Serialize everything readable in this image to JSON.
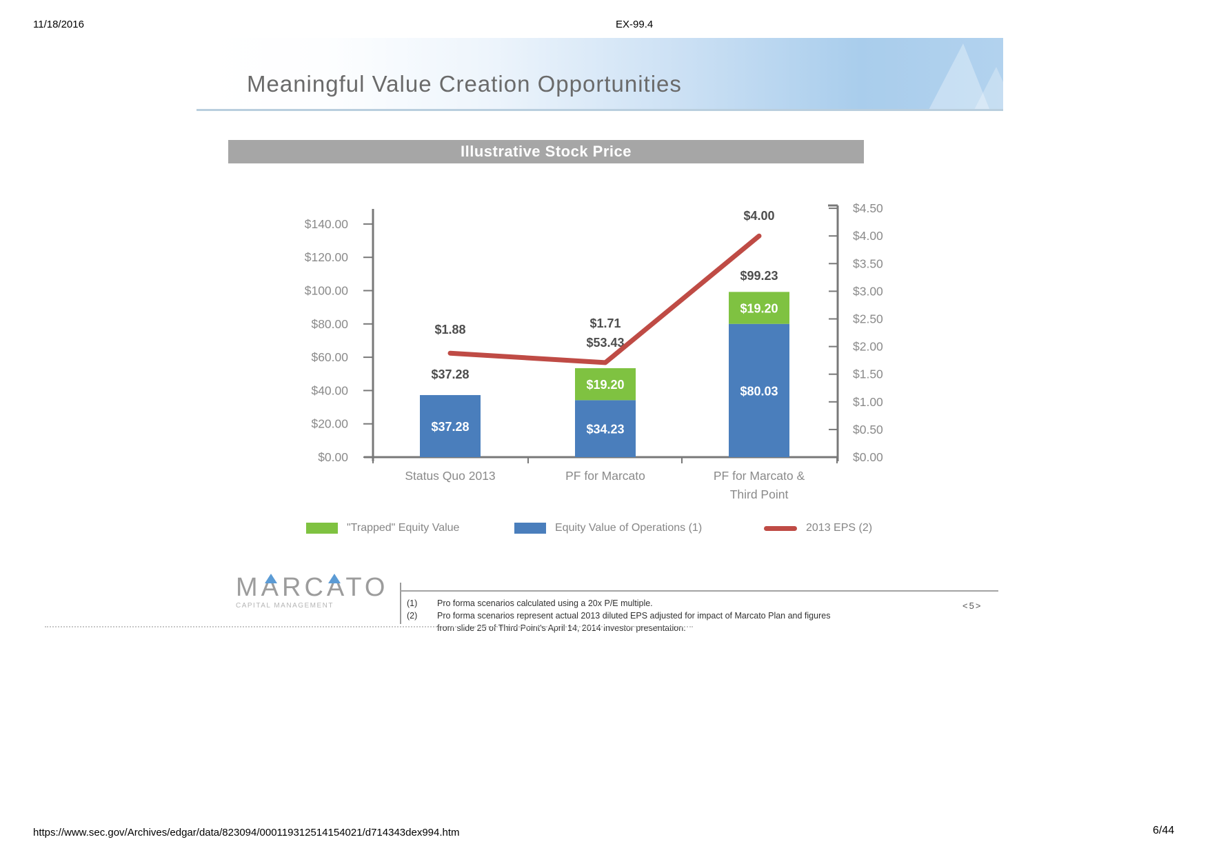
{
  "doc": {
    "date": "11/18/2016",
    "exhibit": "EX-99.4",
    "url": "https://www.sec.gov/Archives/edgar/data/823094/000119312514154021/d714343dex994.htm",
    "page_indicator": "6/44"
  },
  "slide": {
    "title": "Meaningful Value Creation Opportunities",
    "page_marker": "<5>",
    "logo": {
      "name": "MARCATO",
      "subtitle": "CAPITAL MANAGEMENT"
    },
    "footnotes": [
      {
        "num": "(1)",
        "text": "Pro forma scenarios calculated using a 20x P/E multiple."
      },
      {
        "num": "(2)",
        "text": "Pro forma scenarios represent actual 2013 diluted EPS adjusted for impact of Marcato Plan and figures from slide 25 of Third Point's April 14, 2014 investor presentation."
      }
    ]
  },
  "colors": {
    "bar_blue": "#4A7EBC",
    "bar_green": "#7FC241",
    "line_red": "#BF4B45",
    "banner_gray": "#A6A6A6",
    "header_blue": "#A9CDEC",
    "axis_gray": "#787878",
    "label_dark_gray": "#4d4d4d"
  },
  "chart_data": {
    "type": "bar",
    "subtype": "stacked-bar-with-line",
    "title": "Illustrative Stock Price",
    "categories": [
      "Status Quo 2013",
      "PF for Marcato",
      "PF for Marcato &\nThird Point"
    ],
    "series": [
      {
        "name": "\"Trapped\" Equity Value",
        "type": "bar",
        "color": "#7FC241",
        "values": [
          0,
          19.2,
          19.2
        ],
        "labels": [
          "",
          "$19.20",
          "$19.20"
        ]
      },
      {
        "name": "Equity Value of Operations (1)",
        "type": "bar",
        "color": "#4A7EBC",
        "values": [
          37.28,
          34.23,
          80.03
        ],
        "labels": [
          "$37.28",
          "$34.23",
          "$80.03"
        ]
      },
      {
        "name": "2013 EPS (2)",
        "type": "line",
        "axis": "right",
        "color": "#BF4B45",
        "values": [
          1.88,
          1.71,
          4.0
        ],
        "labels": [
          "$1.88",
          "$1.71",
          "$4.00"
        ]
      }
    ],
    "totals": {
      "values": [
        37.28,
        53.43,
        99.23
      ],
      "labels": [
        "$37.28",
        "$53.43",
        "$99.23"
      ]
    },
    "left_axis": {
      "min": 0,
      "max": 140,
      "step": 20,
      "ticks": [
        "$0.00",
        "$20.00",
        "$40.00",
        "$60.00",
        "$80.00",
        "$100.00",
        "$120.00",
        "$140.00"
      ]
    },
    "right_axis": {
      "min": 0,
      "max": 4.5,
      "step": 0.5,
      "ticks": [
        "$0.00",
        "$0.50",
        "$1.00",
        "$1.50",
        "$2.00",
        "$2.50",
        "$3.00",
        "$3.50",
        "$4.00",
        "$4.50"
      ]
    },
    "legend_position": "bottom",
    "grid": false
  }
}
